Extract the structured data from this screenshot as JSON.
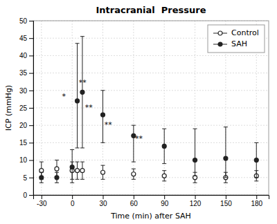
{
  "chart_data": {
    "type": "scatter",
    "title": "Intracranial  Pressure",
    "x_label": "Time (min) after SAH",
    "y_label": "ICP (mmHg)",
    "xlim": [
      -38,
      192
    ],
    "ylim": [
      0,
      50
    ],
    "xticks": [
      -30,
      0,
      30,
      60,
      90,
      120,
      150,
      180
    ],
    "yticks": [
      0,
      5,
      10,
      15,
      20,
      25,
      30,
      35,
      40,
      45,
      50
    ],
    "grid": true,
    "legend": "upper right",
    "x": [
      -30,
      -15,
      0,
      5,
      10,
      30,
      60,
      90,
      120,
      150,
      180
    ],
    "series": [
      {
        "name": "Control",
        "color": "#222222",
        "marker": "open-circle",
        "values": [
          7.0,
          7.5,
          7.0,
          7.0,
          7.0,
          6.5,
          6.0,
          5.5,
          5.0,
          5.0,
          5.5
        ],
        "error_low": [
          2.5,
          2.5,
          2.5,
          2.5,
          2.5,
          2.0,
          1.5,
          1.5,
          1.5,
          1.5,
          1.5
        ],
        "error_high": [
          2.5,
          2.5,
          2.5,
          2.5,
          2.5,
          2.0,
          1.5,
          1.5,
          1.5,
          1.5,
          1.5
        ]
      },
      {
        "name": "SAH",
        "color": "#222222",
        "marker": "circle",
        "values": [
          5.0,
          5.0,
          8.0,
          27.0,
          29.5,
          23.0,
          17.0,
          14.0,
          10.0,
          10.5,
          10.0
        ],
        "error_low": [
          1.5,
          1.5,
          4.5,
          13.5,
          16.0,
          8.0,
          7.5,
          5.0,
          4.5,
          5.5,
          5.0
        ],
        "error_high": [
          1.5,
          1.5,
          5.0,
          16.5,
          16.0,
          7.0,
          3.0,
          5.0,
          9.0,
          9.0,
          5.0
        ]
      }
    ],
    "annotations": [
      {
        "x": -10,
        "y": 27.5,
        "text": "*"
      },
      {
        "x": 6.5,
        "y": 31.5,
        "text": "**"
      },
      {
        "x": 12.5,
        "y": 24.5,
        "text": "**"
      },
      {
        "x": 31.5,
        "y": 19.5,
        "text": "**"
      },
      {
        "x": 61.5,
        "y": 15.5,
        "text": "**"
      }
    ]
  }
}
